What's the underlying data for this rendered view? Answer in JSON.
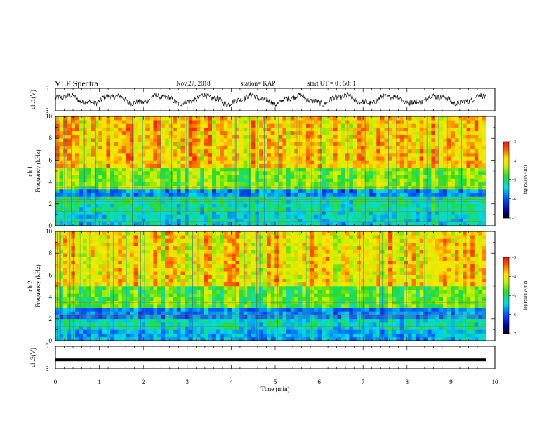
{
  "header": {
    "title": "VLF Spectra",
    "date": "Nov.27, 2018",
    "station": "station= KAP",
    "start": "start UT =  0 : 50: 1"
  },
  "chart_data": [
    {
      "type": "line",
      "name": "ch1-waveform",
      "ylabel": "ch.1(V)",
      "ylim": [
        -5,
        5
      ],
      "yticks": [
        "5",
        "-5"
      ],
      "xlim": [
        0,
        10
      ]
    },
    {
      "type": "heatmap",
      "name": "ch1-spectrogram",
      "ylabel_line1": "ch.1",
      "ylabel_line2": "Frequency  (kHz)",
      "ylim": [
        0,
        10
      ],
      "yticks": [
        "0",
        "2",
        "4",
        "6",
        "8",
        "10"
      ],
      "xlim": [
        0,
        10
      ],
      "colorbar": {
        "label": "log(PSD)(V²/Hz)",
        "range": [
          -7,
          -3
        ],
        "ticks": [
          "-3",
          "-4",
          "-5",
          "-6",
          "-7"
        ]
      },
      "bands": [
        {
          "from_khz": 0.0,
          "to_khz": 1.2,
          "level": -5.4
        },
        {
          "from_khz": 1.2,
          "to_khz": 2.6,
          "level": -5.2
        },
        {
          "from_khz": 2.6,
          "to_khz": 3.3,
          "level": -5.8
        },
        {
          "from_khz": 3.3,
          "to_khz": 5.5,
          "level": -4.6
        },
        {
          "from_khz": 5.5,
          "to_khz": 10.0,
          "level": -3.9
        }
      ]
    },
    {
      "type": "heatmap",
      "name": "ch2-spectrogram",
      "ylabel_line1": "ch.2",
      "ylabel_line2": "Frequency  (kHz)",
      "ylim": [
        0,
        10
      ],
      "yticks": [
        "0",
        "2",
        "4",
        "6",
        "8",
        "10"
      ],
      "xlim": [
        0,
        10
      ],
      "colorbar": {
        "label": "log(PSD)(V²/Hz)",
        "range": [
          -7,
          -3
        ],
        "ticks": [
          "-3",
          "-4",
          "-5",
          "-6",
          "-7"
        ]
      },
      "bands": [
        {
          "from_khz": 0.0,
          "to_khz": 1.0,
          "level": -5.6
        },
        {
          "from_khz": 1.0,
          "to_khz": 2.0,
          "level": -5.3
        },
        {
          "from_khz": 2.0,
          "to_khz": 3.0,
          "level": -5.8
        },
        {
          "from_khz": 3.0,
          "to_khz": 5.0,
          "level": -4.7
        },
        {
          "from_khz": 5.0,
          "to_khz": 10.0,
          "level": -4.0
        }
      ]
    },
    {
      "type": "line",
      "name": "ch3-waveform",
      "ylabel": "ch.3(V)",
      "ylim": [
        -5,
        5
      ],
      "yticks": [
        "5",
        "-5"
      ],
      "xlim": [
        0,
        10
      ],
      "values_approx": {
        "level_v": -1.0
      }
    }
  ],
  "xaxis": {
    "label": "Time  (min)",
    "ticks": [
      "0",
      "1",
      "2",
      "3",
      "4",
      "5",
      "6",
      "7",
      "8",
      "9",
      "10"
    ],
    "data_end_min": 9.8
  }
}
